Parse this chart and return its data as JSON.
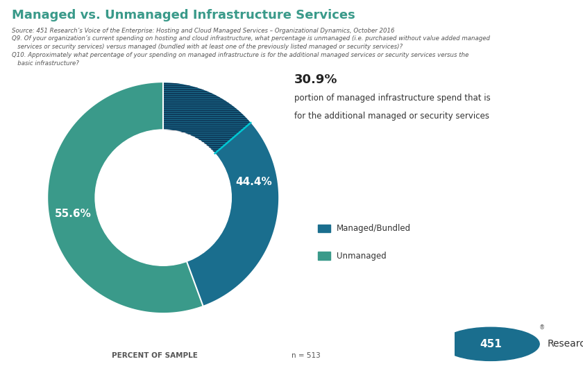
{
  "title": "Managed vs. Unmanaged Infrastructure Services",
  "title_color": "#3a9a8a",
  "source_text": "Source: 451 Research’s Voice of the Enterprise: Hosting and Cloud Managed Services – Organizational Dynamics, October 2016\nQ9. Of your organization’s current spending on hosting and cloud infrastructure, what percentage is unmanaged (i.e. purchased without value added managed\n   services or security services) versus managed (bundled with at least one of the previously listed managed or security services)?\nQ10. Approximately what percentage of your spending on managed infrastructure is for the additional managed services or security services versus the\n   basic infrastructure?",
  "segments": [
    44.4,
    55.6
  ],
  "segment_colors": [
    "#1a6e8e",
    "#3a9a8a"
  ],
  "segment_labels": [
    "44.4%",
    "55.6%"
  ],
  "hatched_pct": 30.9,
  "annotation_pct": "30.9%",
  "annotation_line1": "portion of managed infrastructure spend that is",
  "annotation_line2": "for the additional managed or security services",
  "legend_labels": [
    "Managed/Bundled",
    "Unmanaged"
  ],
  "legend_colors": [
    "#1a6e8e",
    "#3a9a8a"
  ],
  "footer_left": "PERCENT OF SAMPLE",
  "footer_center": "n = 513"
}
